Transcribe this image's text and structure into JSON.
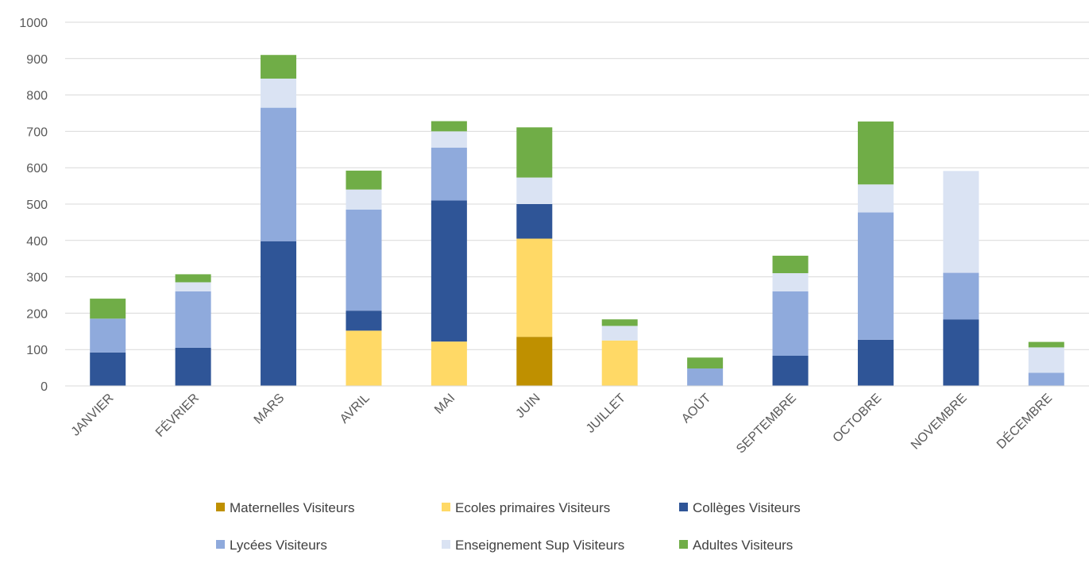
{
  "chart_data": {
    "type": "bar",
    "stacked": true,
    "title": "",
    "xlabel": "",
    "ylabel": "",
    "ylim": [
      0,
      1000
    ],
    "yticks": [
      0,
      100,
      200,
      300,
      400,
      500,
      600,
      700,
      800,
      900,
      1000
    ],
    "grid": true,
    "legend_position": "bottom",
    "categories": [
      "JANVIER",
      "FÉVRIER",
      "MARS",
      "AVRIL",
      "MAI",
      "JUIN",
      "JUILLET",
      "AOÛT",
      "SEPTEMBRE",
      "OCTOBRE",
      "NOVEMBRE",
      "DÉCEMBRE"
    ],
    "series": [
      {
        "name": "Maternelles Visiteurs",
        "color": "#bf9000",
        "values": [
          0,
          0,
          0,
          0,
          0,
          135,
          0,
          0,
          0,
          0,
          0,
          0
        ]
      },
      {
        "name": "Ecoles primaires Visiteurs",
        "color": "#ffd966",
        "values": [
          0,
          0,
          0,
          152,
          122,
          270,
          125,
          0,
          0,
          0,
          0,
          0
        ]
      },
      {
        "name": "Collèges Visiteurs",
        "color": "#2f5597",
        "values": [
          92,
          105,
          398,
          55,
          388,
          95,
          0,
          0,
          83,
          127,
          183,
          0
        ]
      },
      {
        "name": "Lycées Visiteurs",
        "color": "#8faadc",
        "values": [
          93,
          155,
          367,
          278,
          145,
          0,
          0,
          48,
          177,
          350,
          128,
          36
        ]
      },
      {
        "name": "Enseignement Sup Visiteurs",
        "color": "#dae3f3",
        "values": [
          0,
          25,
          80,
          55,
          45,
          73,
          40,
          0,
          50,
          77,
          280,
          70
        ]
      },
      {
        "name": "Adultes Visiteurs",
        "color": "#70ad47",
        "values": [
          55,
          22,
          65,
          52,
          28,
          138,
          18,
          30,
          48,
          173,
          0,
          15
        ]
      }
    ]
  }
}
